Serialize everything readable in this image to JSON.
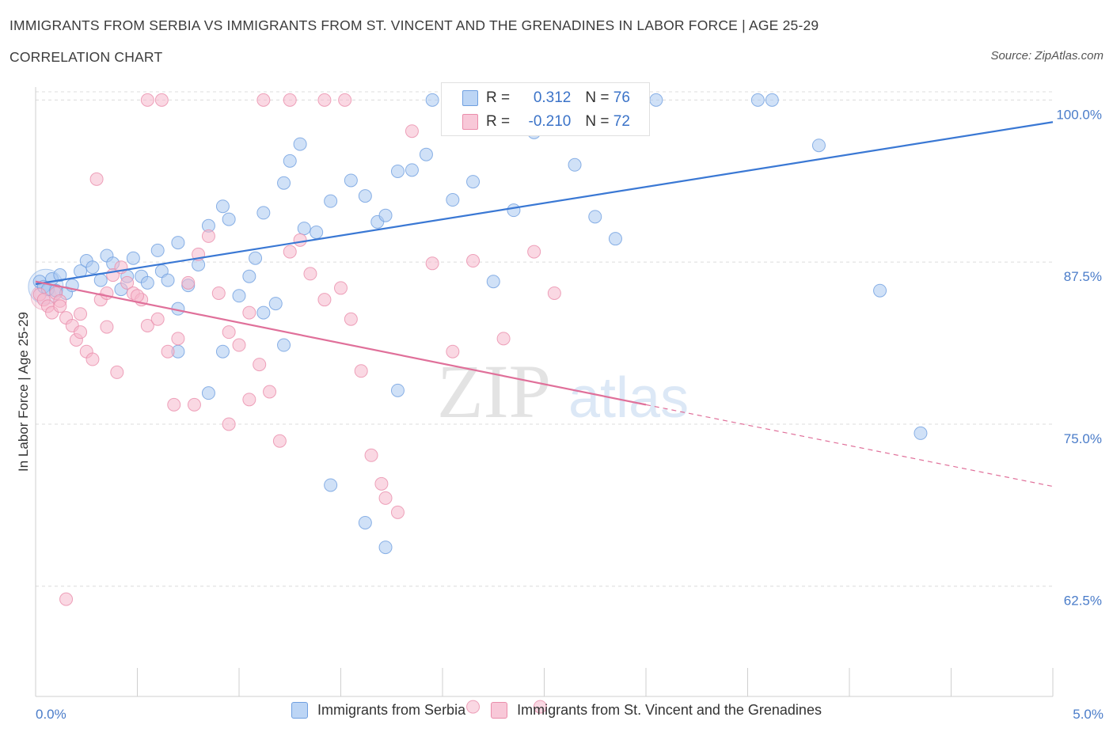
{
  "title": "IMMIGRANTS FROM SERBIA VS IMMIGRANTS FROM ST. VINCENT AND THE GRENADINES IN LABOR FORCE | AGE 25-29",
  "subtitle": "CORRELATION CHART",
  "source": "Source: ZipAtlas.com",
  "watermark": {
    "zip": "ZIP",
    "atlas": "atlas"
  },
  "legend": {
    "rows": [
      {
        "r_label": "R = ",
        "r_value": "0.312",
        "n_label": "N = ",
        "n_value": "76"
      },
      {
        "r_label": "R = ",
        "r_value": "-0.210",
        "n_label": "N = ",
        "n_value": "72"
      }
    ]
  },
  "bottom_legend": [
    "Immigrants from Serbia",
    "Immigrants from St. Vincent and the Grenadines"
  ],
  "colors": {
    "serbia_fill": "#aac8f0",
    "serbia_stroke": "#6f9fe0",
    "serbia_line": "#3a78d4",
    "stvincent_fill": "#f6b8cc",
    "stvincent_stroke": "#ea8dab",
    "stvincent_line": "#e0709a",
    "grid": "#dcdcdc",
    "tick_text": "#4a7cc9"
  },
  "chart_data": {
    "type": "scatter",
    "ylabel": "In Labor Force | Age 25-29",
    "xlabel": "",
    "xlim": [
      0,
      5
    ],
    "ylim": [
      54,
      101
    ],
    "x_tick_labels": [
      {
        "value": 0,
        "label": "0.0%"
      },
      {
        "value": 5,
        "label": "5.0%"
      }
    ],
    "y_tick_labels": [
      {
        "value": 100,
        "label": "100.0%"
      },
      {
        "value": 87.5,
        "label": "87.5%"
      },
      {
        "value": 75,
        "label": "75.0%"
      },
      {
        "value": 62.5,
        "label": "62.5%"
      }
    ],
    "grid": true,
    "series": [
      {
        "name": "Immigrants from Serbia",
        "R": 0.312,
        "N": 76,
        "trend": {
          "x": [
            0,
            5
          ],
          "y": [
            85.8,
            98.3
          ]
        },
        "points": [
          [
            0.02,
            86.0
          ],
          [
            0.04,
            85.6
          ],
          [
            0.06,
            85.4
          ],
          [
            0.08,
            86.2
          ],
          [
            0.1,
            85.3
          ],
          [
            0.12,
            86.5
          ],
          [
            0.15,
            85.1
          ],
          [
            0.18,
            85.7
          ],
          [
            0.22,
            86.8
          ],
          [
            0.25,
            87.6
          ],
          [
            0.28,
            87.1
          ],
          [
            0.32,
            86.1
          ],
          [
            0.35,
            88.0
          ],
          [
            0.38,
            87.4
          ],
          [
            0.42,
            85.4
          ],
          [
            0.45,
            86.4
          ],
          [
            0.48,
            87.8
          ],
          [
            0.52,
            86.4
          ],
          [
            0.55,
            85.9
          ],
          [
            0.6,
            88.4
          ],
          [
            0.62,
            86.8
          ],
          [
            0.65,
            86.1
          ],
          [
            0.7,
            89.0
          ],
          [
            0.75,
            85.7
          ],
          [
            0.8,
            87.3
          ],
          [
            0.85,
            90.3
          ],
          [
            0.92,
            91.8
          ],
          [
            0.95,
            90.8
          ],
          [
            1.0,
            84.9
          ],
          [
            1.05,
            86.4
          ],
          [
            1.08,
            87.8
          ],
          [
            1.12,
            91.3
          ],
          [
            1.18,
            84.3
          ],
          [
            1.22,
            93.6
          ],
          [
            1.25,
            95.3
          ],
          [
            1.3,
            96.6
          ],
          [
            1.32,
            90.1
          ],
          [
            1.38,
            89.8
          ],
          [
            1.45,
            92.2
          ],
          [
            1.55,
            93.8
          ],
          [
            1.62,
            92.6
          ],
          [
            1.68,
            90.6
          ],
          [
            1.72,
            91.1
          ],
          [
            1.78,
            94.5
          ],
          [
            1.85,
            94.6
          ],
          [
            1.92,
            95.8
          ],
          [
            2.05,
            92.3
          ],
          [
            2.15,
            93.7
          ],
          [
            2.25,
            86.0
          ],
          [
            2.35,
            91.5
          ],
          [
            2.45,
            97.5
          ],
          [
            2.65,
            95.0
          ],
          [
            2.75,
            91.0
          ],
          [
            2.85,
            89.3
          ],
          [
            0.7,
            80.6
          ],
          [
            0.85,
            77.4
          ],
          [
            0.7,
            83.9
          ],
          [
            0.92,
            80.6
          ],
          [
            1.12,
            83.6
          ],
          [
            1.22,
            81.1
          ],
          [
            1.45,
            70.3
          ],
          [
            1.62,
            67.4
          ],
          [
            1.72,
            65.5
          ],
          [
            1.78,
            77.6
          ],
          [
            1.95,
            100.0
          ],
          [
            2.05,
            100.0
          ],
          [
            2.15,
            100.0
          ],
          [
            2.45,
            100.0
          ],
          [
            2.55,
            100.0
          ],
          [
            2.95,
            100.0
          ],
          [
            3.05,
            100.0
          ],
          [
            3.55,
            100.0
          ],
          [
            3.62,
            100.0
          ],
          [
            3.85,
            96.5
          ],
          [
            4.15,
            85.3
          ],
          [
            4.35,
            74.3
          ]
        ]
      },
      {
        "name": "Immigrants from St. Vincent and the Grenadines",
        "R": -0.21,
        "N": 72,
        "trend": {
          "x": [
            0,
            3.0
          ],
          "y": [
            86.0,
            76.5
          ]
        },
        "trend_dashed": {
          "x": [
            3.0,
            5
          ],
          "y": [
            76.5,
            70.2
          ]
        },
        "points": [
          [
            0.02,
            85.0
          ],
          [
            0.04,
            84.6
          ],
          [
            0.06,
            84.1
          ],
          [
            0.08,
            83.6
          ],
          [
            0.1,
            85.1
          ],
          [
            0.12,
            84.5
          ],
          [
            0.15,
            83.2
          ],
          [
            0.18,
            82.6
          ],
          [
            0.2,
            81.5
          ],
          [
            0.22,
            82.1
          ],
          [
            0.25,
            80.6
          ],
          [
            0.28,
            80.0
          ],
          [
            0.32,
            84.6
          ],
          [
            0.35,
            85.1
          ],
          [
            0.38,
            86.5
          ],
          [
            0.42,
            87.1
          ],
          [
            0.45,
            85.9
          ],
          [
            0.48,
            85.1
          ],
          [
            0.52,
            84.6
          ],
          [
            0.55,
            82.6
          ],
          [
            0.6,
            83.1
          ],
          [
            0.65,
            80.6
          ],
          [
            0.7,
            81.6
          ],
          [
            0.75,
            85.9
          ],
          [
            0.8,
            88.1
          ],
          [
            0.85,
            89.5
          ],
          [
            0.9,
            85.1
          ],
          [
            0.95,
            82.1
          ],
          [
            1.0,
            81.1
          ],
          [
            1.05,
            83.6
          ],
          [
            1.1,
            79.6
          ],
          [
            1.15,
            77.5
          ],
          [
            1.2,
            73.7
          ],
          [
            1.25,
            88.3
          ],
          [
            1.3,
            89.2
          ],
          [
            1.35,
            86.6
          ],
          [
            1.42,
            84.6
          ],
          [
            1.5,
            85.5
          ],
          [
            1.55,
            83.1
          ],
          [
            1.6,
            79.1
          ],
          [
            1.65,
            72.6
          ],
          [
            1.7,
            70.4
          ],
          [
            1.72,
            69.3
          ],
          [
            1.78,
            68.2
          ],
          [
            1.85,
            97.6
          ],
          [
            1.95,
            87.4
          ],
          [
            2.05,
            80.6
          ],
          [
            2.15,
            87.6
          ],
          [
            2.3,
            81.6
          ],
          [
            2.45,
            88.3
          ],
          [
            2.55,
            85.1
          ],
          [
            0.15,
            61.5
          ],
          [
            0.3,
            93.9
          ],
          [
            0.55,
            100.0
          ],
          [
            0.62,
            100.0
          ],
          [
            1.12,
            100.0
          ],
          [
            1.25,
            100.0
          ],
          [
            1.42,
            100.0
          ],
          [
            1.52,
            100.0
          ],
          [
            2.35,
            100.0
          ],
          [
            2.42,
            100.0
          ],
          [
            0.12,
            84.1
          ],
          [
            0.22,
            83.5
          ],
          [
            0.35,
            82.5
          ],
          [
            0.5,
            84.9
          ],
          [
            0.68,
            76.5
          ],
          [
            0.78,
            76.5
          ],
          [
            0.95,
            75.0
          ],
          [
            1.05,
            76.9
          ],
          [
            0.4,
            79.0
          ],
          [
            2.15,
            53.2
          ],
          [
            2.48,
            53.2
          ]
        ]
      }
    ]
  }
}
